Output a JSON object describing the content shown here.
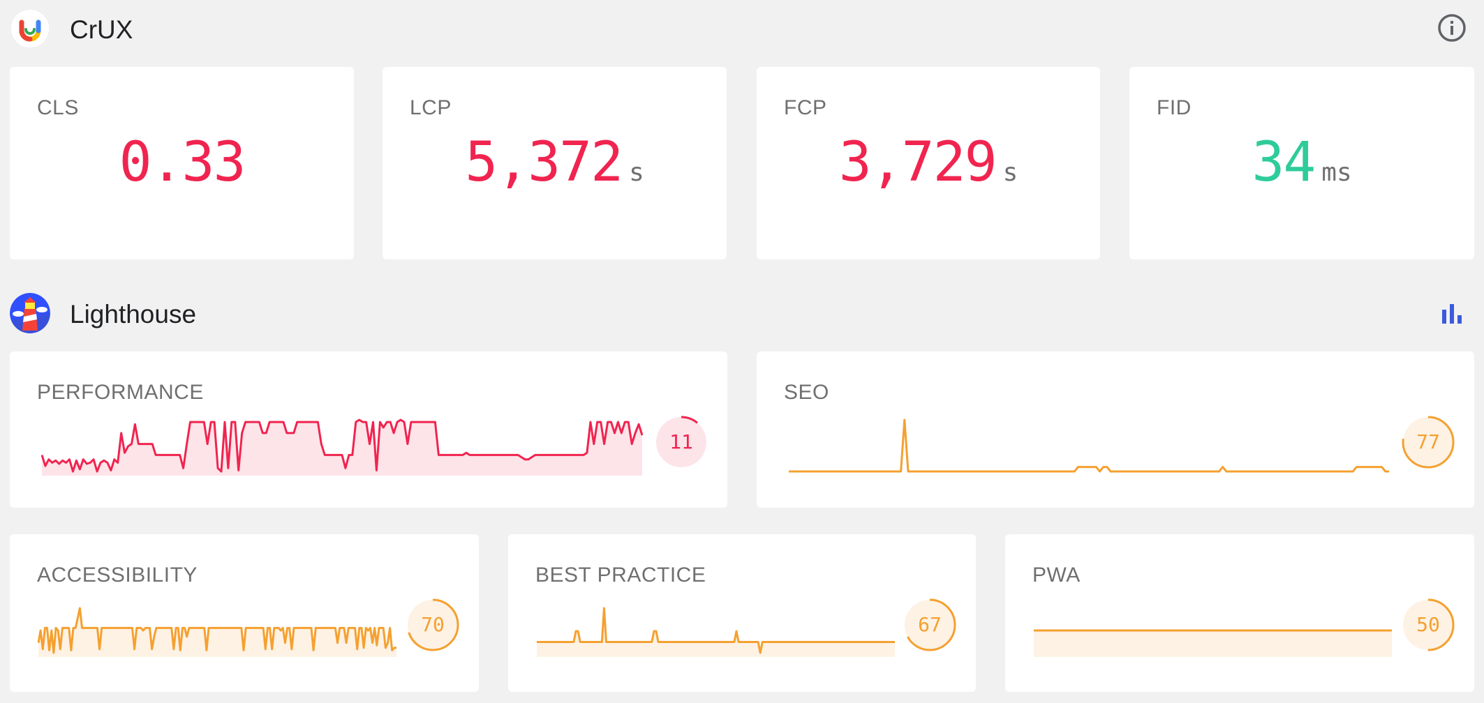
{
  "crux": {
    "title": "CrUX",
    "logo_icon": "crux-logo-icon",
    "info_icon": "info-icon",
    "metrics": [
      {
        "label": "CLS",
        "value": "0.33",
        "unit": "",
        "color": "#f0244f"
      },
      {
        "label": "LCP",
        "value": "5,372",
        "unit": "s",
        "color": "#f0244f"
      },
      {
        "label": "FCP",
        "value": "3,729",
        "unit": "s",
        "color": "#f0244f"
      },
      {
        "label": "FID",
        "value": "34",
        "unit": "ms",
        "color": "#2ecc9a"
      }
    ]
  },
  "lighthouse": {
    "title": "Lighthouse",
    "logo_icon": "lighthouse-logo-icon",
    "chart_icon": "bar-chart-icon",
    "chart_icon_color": "#3b5bdb",
    "colors": {
      "poor": "#f0244f",
      "average": "#f5a030",
      "poor_fill": "#fde4e9",
      "average_fill": "#fdf2e4"
    }
  },
  "chart_data": [
    {
      "type": "line",
      "title": "PERFORMANCE",
      "score": "11",
      "score_fraction": 0.11,
      "ylim": [
        0,
        100
      ],
      "values": [
        10,
        0,
        6,
        3,
        5,
        2,
        5,
        3,
        6,
        -5,
        5,
        -3,
        6,
        2,
        3,
        6,
        -5,
        3,
        5,
        3,
        -4,
        6,
        3,
        30,
        12,
        18,
        20,
        38,
        20,
        20,
        20,
        20,
        20,
        10,
        10,
        10,
        10,
        10,
        10,
        10,
        10,
        -2,
        20,
        40,
        40,
        40,
        40,
        40,
        20,
        40,
        40,
        -2,
        -5,
        40,
        -2,
        40,
        40,
        -4,
        30,
        40,
        40,
        40,
        40,
        40,
        30,
        30,
        40,
        40,
        40,
        40,
        40,
        30,
        30,
        30,
        40,
        40,
        40,
        40,
        40,
        40,
        40,
        20,
        10,
        10,
        10,
        10,
        10,
        10,
        -2,
        10,
        10,
        40,
        42,
        40,
        40,
        20,
        40,
        -4,
        40,
        35,
        40,
        40,
        30,
        40,
        42,
        40,
        20,
        40,
        40,
        40,
        40,
        40,
        40,
        40,
        40,
        10,
        10,
        10,
        10,
        10,
        10,
        10,
        10,
        12,
        10,
        10,
        10,
        10,
        10,
        10,
        10,
        10,
        10,
        10,
        10,
        10,
        10,
        10,
        10,
        8,
        6,
        6,
        8,
        10,
        10,
        10,
        10,
        10,
        10,
        10,
        10,
        10,
        10,
        10,
        10,
        10,
        10,
        10,
        12,
        40,
        20,
        40,
        40,
        20,
        40,
        40,
        30,
        40,
        30,
        40,
        40,
        20,
        30,
        38,
        28
      ]
    },
    {
      "type": "line",
      "title": "SEO",
      "score": "77",
      "score_fraction": 0.77,
      "ylim": [
        0,
        100
      ],
      "values": [
        77,
        77,
        77,
        77,
        77,
        77,
        77,
        77,
        77,
        77,
        77,
        77,
        77,
        77,
        77,
        77,
        77,
        77,
        77,
        77,
        77,
        77,
        77,
        77,
        77,
        77,
        77,
        77,
        77,
        77,
        77,
        77,
        100,
        77,
        77,
        77,
        77,
        77,
        77,
        77,
        77,
        77,
        77,
        77,
        77,
        77,
        77,
        77,
        77,
        77,
        77,
        77,
        77,
        77,
        77,
        77,
        77,
        77,
        77,
        77,
        77,
        77,
        77,
        77,
        77,
        77,
        77,
        77,
        77,
        77,
        77,
        77,
        77,
        77,
        77,
        77,
        77,
        77,
        77,
        77,
        79,
        79,
        79,
        79,
        79,
        79,
        77,
        79,
        79,
        77,
        77,
        77,
        77,
        77,
        77,
        77,
        77,
        77,
        77,
        77,
        77,
        77,
        77,
        77,
        77,
        77,
        77,
        77,
        77,
        77,
        77,
        77,
        77,
        77,
        77,
        77,
        77,
        77,
        77,
        77,
        79,
        77,
        77,
        77,
        77,
        77,
        77,
        77,
        77,
        77,
        77,
        77,
        77,
        77,
        77,
        77,
        77,
        77,
        77,
        77,
        77,
        77,
        77,
        77,
        77,
        77,
        77,
        77,
        77,
        77,
        77,
        77,
        77,
        77,
        77,
        77,
        77,
        79,
        79,
        79,
        79,
        79,
        79,
        79,
        79,
        77,
        77
      ]
    },
    {
      "type": "line",
      "title": "ACCESSIBILITY",
      "score": "70",
      "score_fraction": 0.7,
      "ylim": [
        0,
        100
      ],
      "values": [
        70,
        80,
        65,
        82,
        82,
        64,
        80,
        62,
        82,
        80,
        65,
        82,
        82,
        82,
        82,
        64,
        82,
        82,
        90,
        98,
        82,
        82,
        82,
        82,
        82,
        82,
        82,
        82,
        65,
        82,
        82,
        82,
        82,
        82,
        82,
        82,
        82,
        82,
        82,
        82,
        82,
        82,
        82,
        82,
        65,
        82,
        82,
        82,
        80,
        82,
        82,
        82,
        65,
        75,
        82,
        82,
        82,
        82,
        82,
        82,
        82,
        82,
        65,
        82,
        82,
        64,
        82,
        82,
        75,
        82,
        82,
        82,
        82,
        82,
        82,
        82,
        82,
        64,
        82,
        82,
        82,
        82,
        82,
        82,
        82,
        82,
        82,
        82,
        82,
        82,
        82,
        82,
        82,
        82,
        64,
        82,
        82,
        82,
        82,
        82,
        82,
        82,
        82,
        82,
        65,
        82,
        82,
        65,
        82,
        82,
        82,
        80,
        82,
        70,
        82,
        82,
        65,
        82,
        82,
        82,
        82,
        82,
        82,
        82,
        82,
        82,
        64,
        82,
        82,
        82,
        82,
        82,
        82,
        82,
        82,
        82,
        82,
        70,
        82,
        82,
        82,
        70,
        82,
        82,
        82,
        82,
        65,
        82,
        82,
        66,
        82,
        80,
        82,
        70,
        82,
        68,
        82,
        82,
        82,
        66,
        70,
        82,
        64,
        66,
        66
      ]
    },
    {
      "type": "line",
      "title": "BEST PRACTICE",
      "score": "67",
      "score_fraction": 0.67,
      "ylim": [
        0,
        100
      ],
      "values": [
        70,
        70,
        70,
        70,
        70,
        70,
        70,
        70,
        70,
        70,
        70,
        70,
        70,
        70,
        70,
        70,
        70,
        70,
        78,
        78,
        70,
        70,
        70,
        70,
        70,
        70,
        70,
        70,
        70,
        70,
        70,
        95,
        70,
        70,
        70,
        70,
        70,
        70,
        70,
        70,
        70,
        70,
        70,
        70,
        70,
        70,
        70,
        70,
        70,
        70,
        70,
        70,
        70,
        70,
        78,
        78,
        70,
        70,
        70,
        70,
        70,
        70,
        70,
        70,
        70,
        70,
        70,
        70,
        70,
        70,
        70,
        70,
        70,
        70,
        70,
        70,
        70,
        70,
        70,
        70,
        70,
        70,
        70,
        70,
        70,
        70,
        70,
        70,
        70,
        70,
        70,
        70,
        78,
        70,
        70,
        70,
        70,
        70,
        70,
        70,
        70,
        70,
        70,
        62,
        70,
        70,
        70,
        70,
        70,
        70,
        70,
        70,
        70,
        70,
        70,
        70,
        70,
        70,
        70,
        70,
        70,
        70,
        70,
        70,
        70,
        70,
        70,
        70,
        70,
        70,
        70,
        70,
        70,
        70,
        70,
        70,
        70,
        70,
        70,
        70,
        70,
        70,
        70,
        70,
        70,
        70,
        70,
        70,
        70,
        70,
        70,
        70,
        70,
        70,
        70,
        70,
        70,
        70,
        70,
        70,
        70,
        70,
        70,
        70,
        70,
        70
      ]
    },
    {
      "type": "line",
      "title": "PWA",
      "score": "50",
      "score_fraction": 0.5,
      "ylim": [
        0,
        100
      ],
      "values": [
        50,
        50,
        50,
        50,
        50,
        50,
        50,
        50,
        50,
        50,
        50,
        50,
        50,
        50,
        50,
        50,
        50,
        50,
        50,
        50,
        50,
        50,
        50,
        50,
        50,
        50,
        50,
        50,
        50,
        50
      ]
    }
  ]
}
